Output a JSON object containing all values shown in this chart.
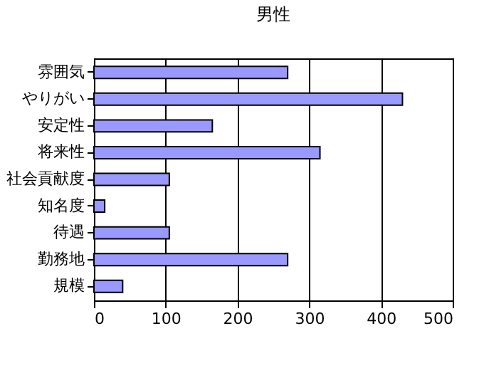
{
  "chart_data": {
    "type": "bar",
    "title": "男性",
    "orientation": "horizontal",
    "categories": [
      "雰囲気",
      "やりがい",
      "安定性",
      "将来性",
      "社会貢献度",
      "知名度",
      "待遇",
      "勤務地",
      "規模"
    ],
    "values": [
      270,
      430,
      165,
      315,
      105,
      15,
      105,
      270,
      40
    ],
    "color": "#9999ff",
    "xlim": [
      0,
      500
    ],
    "xticks": [
      0,
      100,
      200,
      300,
      400,
      500
    ],
    "grid": "x"
  }
}
